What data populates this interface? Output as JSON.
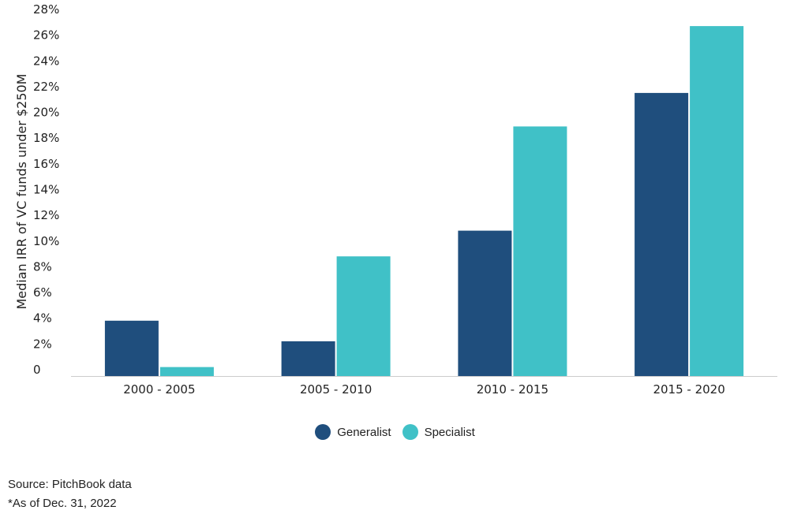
{
  "chart_data": {
    "type": "bar",
    "categories": [
      "2000 - 2005",
      "2005 - 2010",
      "2010 - 2015",
      "2015 - 2020"
    ],
    "series": [
      {
        "name": "Generalist",
        "values": [
          4.3,
          2.7,
          11.3,
          22.0
        ],
        "color": "#1f4e7d"
      },
      {
        "name": "Specialist",
        "values": [
          0.7,
          9.3,
          19.4,
          27.2
        ],
        "color": "#40c1c7"
      }
    ],
    "ylabel": "Median IRR of VC funds under $250M",
    "xlabel": "",
    "ylim": [
      0,
      28
    ],
    "yticks": [
      "0",
      "2%",
      "4%",
      "6%",
      "8%",
      "10%",
      "12%",
      "14%",
      "16%",
      "18%",
      "20%",
      "22%",
      "24%",
      "26%",
      "28%"
    ],
    "grid": false,
    "legend_position": "bottom-center"
  },
  "footer": {
    "source": "Source: PitchBook data",
    "note": "*As of Dec. 31, 2022"
  }
}
